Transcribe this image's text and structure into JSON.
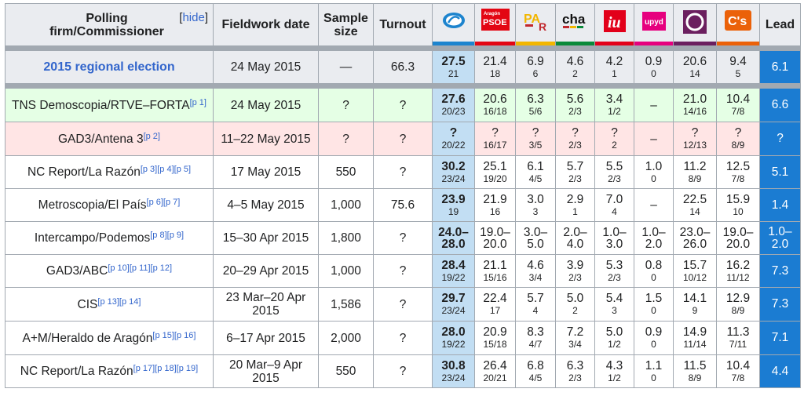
{
  "header": {
    "firm_label": "Polling firm/Commissioner",
    "hide_label": "hide",
    "date_label": "Fieldwork date",
    "sample_label": "Sample size",
    "turnout_label": "Turnout",
    "lead_label": "Lead",
    "parties": [
      {
        "name": "pp-logo",
        "color": "#1d84ce",
        "text": ""
      },
      {
        "name": "psoe-logo",
        "color": "#e30613",
        "text": "PSOE",
        "small": "Aragón"
      },
      {
        "name": "par-logo",
        "color": "#f2b600",
        "text": "PAR"
      },
      {
        "name": "cha-logo",
        "color": "#0a8a3a",
        "text": "cha"
      },
      {
        "name": "iu-logo",
        "color": "#e2001a",
        "text": "iu"
      },
      {
        "name": "upyd-logo",
        "color": "#e6007e",
        "text": "upyd"
      },
      {
        "name": "podemos-logo",
        "color": "#6b1f5f",
        "text": ""
      },
      {
        "name": "cs-logo",
        "color": "#eb6109",
        "text": "C's"
      }
    ]
  },
  "rows": [
    {
      "type": "election",
      "firm": "2015 regional election",
      "refs": "",
      "date": "24 May 2015",
      "sample": "—",
      "turnout": "66.3",
      "values": [
        [
          "27.5",
          "21"
        ],
        [
          "21.4",
          "18"
        ],
        [
          "6.9",
          "6"
        ],
        [
          "4.6",
          "2"
        ],
        [
          "4.2",
          "1"
        ],
        [
          "0.9",
          "0"
        ],
        [
          "20.6",
          "14"
        ],
        [
          "9.4",
          "5"
        ]
      ],
      "lead": "6.1"
    },
    {
      "type": "exit",
      "firm": "TNS Demoscopia/RTVE–FORTA",
      "refs": "[p 1]",
      "date": "24 May 2015",
      "sample": "?",
      "turnout": "?",
      "values": [
        [
          "27.6",
          "20/23"
        ],
        [
          "20.6",
          "16/18"
        ],
        [
          "6.3",
          "5/6"
        ],
        [
          "5.6",
          "2/3"
        ],
        [
          "3.4",
          "1/2"
        ],
        [
          "–",
          ""
        ],
        [
          "21.0",
          "14/16"
        ],
        [
          "10.4",
          "7/8"
        ]
      ],
      "lead": "6.6"
    },
    {
      "type": "pink",
      "firm": "GAD3/Antena 3",
      "refs": "[p 2]",
      "date": "11–22 May 2015",
      "sample": "?",
      "turnout": "?",
      "values": [
        [
          "?",
          "20/22"
        ],
        [
          "?",
          "16/17"
        ],
        [
          "?",
          "3/5"
        ],
        [
          "?",
          "2/3"
        ],
        [
          "?",
          "2"
        ],
        [
          "–",
          ""
        ],
        [
          "?",
          "12/13"
        ],
        [
          "?",
          "8/9"
        ]
      ],
      "lead": "?"
    },
    {
      "type": "normal",
      "firm": "NC Report/La Razón",
      "refs": "[p 3][p 4][p 5]",
      "date": "17 May 2015",
      "sample": "550",
      "turnout": "?",
      "values": [
        [
          "30.2",
          "23/24"
        ],
        [
          "25.1",
          "19/20"
        ],
        [
          "6.1",
          "4/5"
        ],
        [
          "5.7",
          "2/3"
        ],
        [
          "5.5",
          "2/3"
        ],
        [
          "1.0",
          "0"
        ],
        [
          "11.2",
          "8/9"
        ],
        [
          "12.5",
          "7/8"
        ]
      ],
      "lead": "5.1"
    },
    {
      "type": "normal",
      "firm": "Metroscopia/El País",
      "refs": "[p 6][p 7]",
      "date": "4–5 May 2015",
      "sample": "1,000",
      "turnout": "75.6",
      "values": [
        [
          "23.9",
          "19"
        ],
        [
          "21.9",
          "16"
        ],
        [
          "3.0",
          "3"
        ],
        [
          "2.9",
          "1"
        ],
        [
          "7.0",
          "4"
        ],
        [
          "–",
          ""
        ],
        [
          "22.5",
          "14"
        ],
        [
          "15.9",
          "10"
        ]
      ],
      "lead": "1.4"
    },
    {
      "type": "normal",
      "firm": "Intercampo/Podemos",
      "refs": "[p 8][p 9]",
      "date": "15–30 Apr 2015",
      "sample": "1,800",
      "turnout": "?",
      "values": [
        [
          "24.0–28.0",
          ""
        ],
        [
          "19.0–20.0",
          ""
        ],
        [
          "3.0–5.0",
          ""
        ],
        [
          "2.0–4.0",
          ""
        ],
        [
          "1.0–3.0",
          ""
        ],
        [
          "1.0–2.0",
          ""
        ],
        [
          "23.0–26.0",
          ""
        ],
        [
          "19.0–20.0",
          ""
        ]
      ],
      "lead": "1.0–2.0"
    },
    {
      "type": "normal",
      "firm": "GAD3/ABC",
      "refs": "[p 10][p 11][p 12]",
      "date": "20–29 Apr 2015",
      "sample": "1,000",
      "turnout": "?",
      "values": [
        [
          "28.4",
          "19/22"
        ],
        [
          "21.1",
          "15/16"
        ],
        [
          "4.6",
          "3/4"
        ],
        [
          "3.9",
          "2/3"
        ],
        [
          "5.3",
          "2/3"
        ],
        [
          "0.8",
          "0"
        ],
        [
          "15.7",
          "10/12"
        ],
        [
          "16.2",
          "11/12"
        ]
      ],
      "lead": "7.3"
    },
    {
      "type": "normal",
      "firm": "CIS",
      "refs": "[p 13][p 14]",
      "date": "23 Mar–20 Apr 2015",
      "sample": "1,586",
      "turnout": "?",
      "values": [
        [
          "29.7",
          "23/24"
        ],
        [
          "22.4",
          "17"
        ],
        [
          "5.7",
          "4"
        ],
        [
          "5.0",
          "2"
        ],
        [
          "5.4",
          "3"
        ],
        [
          "1.5",
          "0"
        ],
        [
          "14.1",
          "9"
        ],
        [
          "12.9",
          "8/9"
        ]
      ],
      "lead": "7.3"
    },
    {
      "type": "normal",
      "firm": "A+M/Heraldo de Aragón",
      "refs": "[p 15][p 16]",
      "date": "6–17 Apr 2015",
      "sample": "2,000",
      "turnout": "?",
      "values": [
        [
          "28.0",
          "19/22"
        ],
        [
          "20.9",
          "15/18"
        ],
        [
          "8.3",
          "4/7"
        ],
        [
          "7.2",
          "3/4"
        ],
        [
          "5.0",
          "1/2"
        ],
        [
          "0.9",
          "0"
        ],
        [
          "14.9",
          "11/14"
        ],
        [
          "11.3",
          "7/11"
        ]
      ],
      "lead": "7.1"
    },
    {
      "type": "normal",
      "firm": "NC Report/La Razón",
      "refs": "[p 17][p 18][p 19]",
      "date": "20 Mar–9 Apr 2015",
      "sample": "550",
      "turnout": "?",
      "values": [
        [
          "30.8",
          "23/24"
        ],
        [
          "26.4",
          "20/21"
        ],
        [
          "6.8",
          "4/5"
        ],
        [
          "6.3",
          "2/3"
        ],
        [
          "4.3",
          "1/2"
        ],
        [
          "1.1",
          "0"
        ],
        [
          "11.5",
          "8/9"
        ],
        [
          "10.4",
          "7/8"
        ]
      ],
      "lead": "4.4"
    }
  ]
}
